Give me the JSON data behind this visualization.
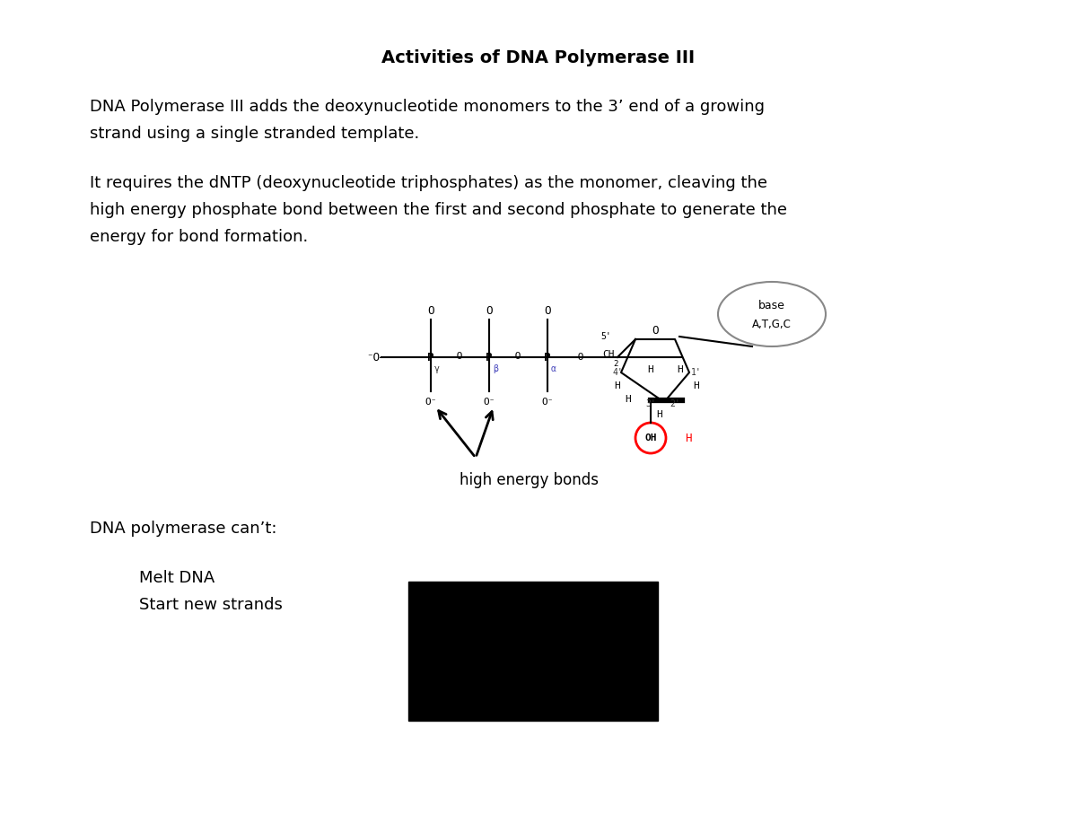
{
  "title": "Activities of DNA Polymerase III",
  "para1_line1": "DNA Polymerase III adds the deoxynucleotide monomers to the 3’ end of a growing",
  "para1_line2": "strand using a single stranded template.",
  "para2_line1": "It requires the dNTP (deoxynucleotide triphosphates) as the monomer, cleaving the",
  "para2_line2": "high energy phosphate bond between the first and second phosphate to generate the",
  "para2_line3": "energy for bond formation.",
  "label_high_energy": "high energy bonds",
  "cant_label": "DNA polymerase can’t:",
  "bullet1": "Melt DNA",
  "bullet2": "Start new strands",
  "bg_color": "#ffffff",
  "text_color": "#000000",
  "title_fontsize": 14,
  "body_fontsize": 13
}
